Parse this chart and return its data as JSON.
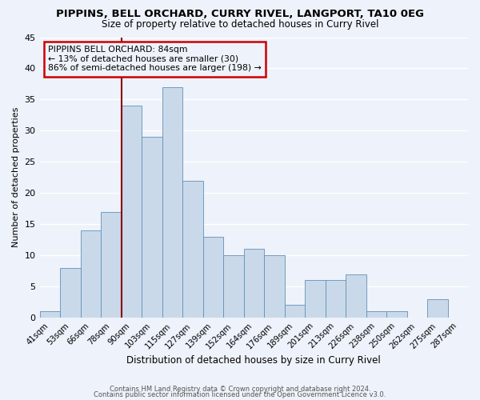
{
  "title": "PIPPINS, BELL ORCHARD, CURRY RIVEL, LANGPORT, TA10 0EG",
  "subtitle": "Size of property relative to detached houses in Curry Rivel",
  "xlabel": "Distribution of detached houses by size in Curry Rivel",
  "ylabel": "Number of detached properties",
  "bar_labels": [
    "41sqm",
    "53sqm",
    "66sqm",
    "78sqm",
    "90sqm",
    "103sqm",
    "115sqm",
    "127sqm",
    "139sqm",
    "152sqm",
    "164sqm",
    "176sqm",
    "189sqm",
    "201sqm",
    "213sqm",
    "226sqm",
    "238sqm",
    "250sqm",
    "262sqm",
    "275sqm",
    "287sqm"
  ],
  "bar_values": [
    1,
    8,
    14,
    17,
    34,
    29,
    37,
    22,
    13,
    10,
    11,
    10,
    2,
    6,
    6,
    7,
    1,
    1,
    0,
    3,
    0
  ],
  "bar_color": "#c9d9ea",
  "bar_edgecolor": "#6090b8",
  "bg_color": "#eef2fa",
  "grid_color": "#ffffff",
  "annotation_box_text": "PIPPINS BELL ORCHARD: 84sqm\n← 13% of detached houses are smaller (30)\n86% of semi-detached houses are larger (198) →",
  "vline_color": "#8b0000",
  "annot_box_edgecolor": "#cc0000",
  "ylim": [
    0,
    45
  ],
  "yticks": [
    0,
    5,
    10,
    15,
    20,
    25,
    30,
    35,
    40,
    45
  ],
  "footer_line1": "Contains HM Land Registry data © Crown copyright and database right 2024.",
  "footer_line2": "Contains public sector information licensed under the Open Government Licence v3.0."
}
